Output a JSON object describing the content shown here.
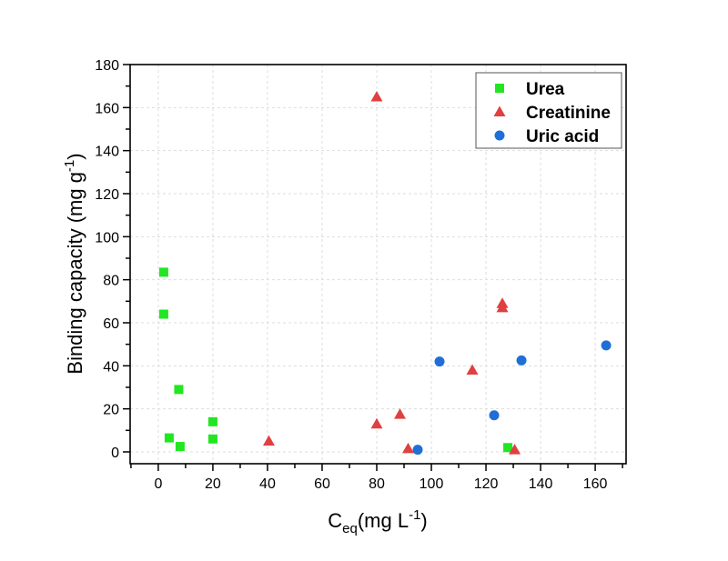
{
  "chart_data": {
    "type": "scatter",
    "xlabel": {
      "main": "C",
      "sub": "eq",
      "rest": "(mg L",
      "sup": "-1",
      "end": ")"
    },
    "ylabel": {
      "main": "Binding capacity (mg g",
      "sup": "-1",
      "end": ")"
    },
    "xlim": [
      -10.3,
      171.3
    ],
    "ylim": [
      -5.5,
      180
    ],
    "xticks": [
      0,
      20,
      40,
      60,
      80,
      100,
      120,
      140,
      160
    ],
    "yticks": [
      0,
      20,
      40,
      60,
      80,
      100,
      120,
      140,
      160,
      180
    ],
    "grid": true,
    "legend_position": "top-right",
    "series": [
      {
        "name": "Urea",
        "marker": "square",
        "color": "#22e622",
        "points": [
          [
            2,
            83.5
          ],
          [
            2,
            64
          ],
          [
            7.5,
            29
          ],
          [
            4,
            6.5
          ],
          [
            8,
            2.5
          ],
          [
            20,
            14
          ],
          [
            20,
            6
          ],
          [
            128,
            2
          ]
        ]
      },
      {
        "name": "Creatinine",
        "marker": "triangle",
        "color": "#e04040",
        "points": [
          [
            80,
            165
          ],
          [
            40.5,
            5
          ],
          [
            80,
            13
          ],
          [
            88.5,
            17.5
          ],
          [
            91.5,
            1.5
          ],
          [
            115,
            38
          ],
          [
            126,
            69
          ],
          [
            126,
            67
          ],
          [
            130.5,
            1
          ]
        ]
      },
      {
        "name": "Uric acid",
        "marker": "circle",
        "color": "#1f6fd6",
        "points": [
          [
            95,
            1
          ],
          [
            103,
            42
          ],
          [
            123,
            17
          ],
          [
            133,
            42.5
          ],
          [
            164,
            49.5
          ]
        ]
      }
    ]
  }
}
